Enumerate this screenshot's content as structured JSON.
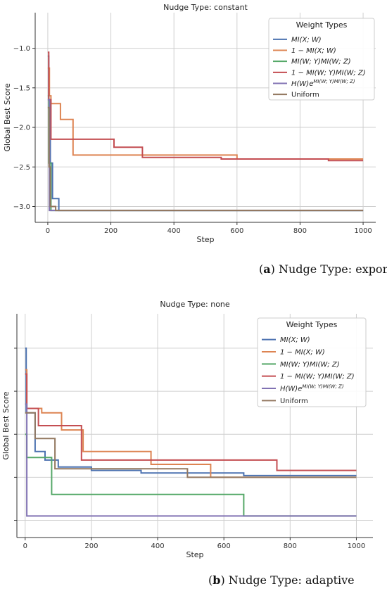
{
  "colors": {
    "series": [
      "#4c72b0",
      "#dd8452",
      "#55a868",
      "#c44e52",
      "#8172b3",
      "#937860"
    ]
  },
  "captions": [
    {
      "label": "a",
      "text": ") Nudge Type: exponential decay"
    },
    {
      "label": "b",
      "text": ") Nudge Type: adaptive"
    }
  ],
  "chart_data": [
    {
      "type": "line",
      "title": "Nudge Type: constant",
      "xlabel": "Step",
      "ylabel": "Global Best Score",
      "xlim": [
        -40,
        1040
      ],
      "ylim": [
        -3.2,
        -0.55
      ],
      "xticks": [
        0,
        200,
        400,
        600,
        800,
        1000
      ],
      "xtick_labels": [
        "0",
        "200",
        "400",
        "600",
        "800",
        "1000"
      ],
      "yticks": [
        -3.0,
        -2.5,
        -2.0,
        -1.5,
        -1.0
      ],
      "ytick_labels": [
        "−3.0",
        "−2.5",
        "−2.0",
        "−1.5",
        "−1.0"
      ],
      "grid": true,
      "legend": {
        "title": "Weight Types",
        "position": "top-right"
      },
      "series": [
        {
          "name": "MI(X; W)",
          "steps": [
            [
              0,
              -1.1
            ],
            [
              3,
              -1.65
            ],
            [
              8,
              -2.45
            ],
            [
              15,
              -2.9
            ],
            [
              35,
              -3.05
            ],
            [
              1000,
              -3.05
            ]
          ]
        },
        {
          "name": "1 − MI(X; W)",
          "steps": [
            [
              0,
              -1.25
            ],
            [
              5,
              -1.6
            ],
            [
              10,
              -1.7
            ],
            [
              40,
              -1.9
            ],
            [
              80,
              -2.35
            ],
            [
              600,
              -2.4
            ],
            [
              1000,
              -2.4
            ]
          ]
        },
        {
          "name": "MI(W; Y)MI(W; Z)",
          "steps": [
            [
              0,
              -1.6
            ],
            [
              3,
              -2.45
            ],
            [
              10,
              -3.05
            ],
            [
              1000,
              -3.05
            ]
          ]
        },
        {
          "name": "1 − MI(W; Y)MI(W; Z)",
          "steps": [
            [
              0,
              -1.05
            ],
            [
              3,
              -1.65
            ],
            [
              10,
              -2.15
            ],
            [
              210,
              -2.25
            ],
            [
              300,
              -2.38
            ],
            [
              550,
              -2.4
            ],
            [
              890,
              -2.42
            ],
            [
              1000,
              -2.42
            ]
          ]
        },
        {
          "name": "H(W)e^{MI(W; Y)MI(W; Z)}",
          "steps": [
            [
              0,
              -1.65
            ],
            [
              5,
              -3.05
            ],
            [
              1000,
              -3.05
            ]
          ]
        },
        {
          "name": "Uniform",
          "steps": [
            [
              0,
              -1.75
            ],
            [
              4,
              -2.5
            ],
            [
              8,
              -3.0
            ],
            [
              25,
              -3.05
            ],
            [
              1000,
              -3.05
            ]
          ]
        }
      ]
    },
    {
      "type": "line",
      "title": "Nudge Type: none",
      "xlabel": "Step",
      "ylabel": "Global Best Score",
      "xlim": [
        -25,
        1050
      ],
      "ylim": [
        -3.2,
        -0.6
      ],
      "xticks": [
        0,
        200,
        400,
        600,
        800,
        1000
      ],
      "xtick_labels": [
        "0",
        "200",
        "400",
        "600",
        "800",
        "1000"
      ],
      "yticks": [
        -3.0,
        -2.5,
        -2.0,
        -1.5,
        -1.0
      ],
      "ytick_labels": [
        "",
        "",
        "",
        "",
        ""
      ],
      "grid": true,
      "legend": {
        "title": "Weight Types",
        "position": "top-right"
      },
      "series": [
        {
          "name": "MI(X; W)",
          "steps": [
            [
              0,
              -1.0
            ],
            [
              3,
              -1.75
            ],
            [
              30,
              -2.2
            ],
            [
              60,
              -2.3
            ],
            [
              100,
              -2.38
            ],
            [
              200,
              -2.42
            ],
            [
              350,
              -2.45
            ],
            [
              660,
              -2.48
            ],
            [
              1000,
              -2.48
            ]
          ]
        },
        {
          "name": "1 − MI(X; W)",
          "steps": [
            [
              0,
              -1.25
            ],
            [
              5,
              -1.7
            ],
            [
              50,
              -1.75
            ],
            [
              110,
              -1.95
            ],
            [
              175,
              -2.2
            ],
            [
              380,
              -2.35
            ],
            [
              560,
              -2.5
            ],
            [
              1000,
              -2.5
            ]
          ]
        },
        {
          "name": "MI(W; Y)MI(W; Z)",
          "steps": [
            [
              0,
              -2.0
            ],
            [
              5,
              -2.27
            ],
            [
              80,
              -2.7
            ],
            [
              660,
              -2.95
            ],
            [
              1000,
              -2.95
            ]
          ]
        },
        {
          "name": "1 − MI(W; Y)MI(W; Z)",
          "steps": [
            [
              0,
              -1.3
            ],
            [
              5,
              -1.7
            ],
            [
              40,
              -1.9
            ],
            [
              170,
              -2.3
            ],
            [
              760,
              -2.42
            ],
            [
              1000,
              -2.42
            ]
          ]
        },
        {
          "name": "H(W)e^{MI(W; Y)MI(W; Z)}",
          "steps": [
            [
              0,
              -1.65
            ],
            [
              5,
              -2.95
            ],
            [
              1000,
              -2.95
            ]
          ]
        },
        {
          "name": "Uniform",
          "steps": [
            [
              0,
              -1.75
            ],
            [
              30,
              -2.05
            ],
            [
              90,
              -2.4
            ],
            [
              490,
              -2.5
            ],
            [
              1000,
              -2.5
            ]
          ]
        }
      ]
    }
  ]
}
